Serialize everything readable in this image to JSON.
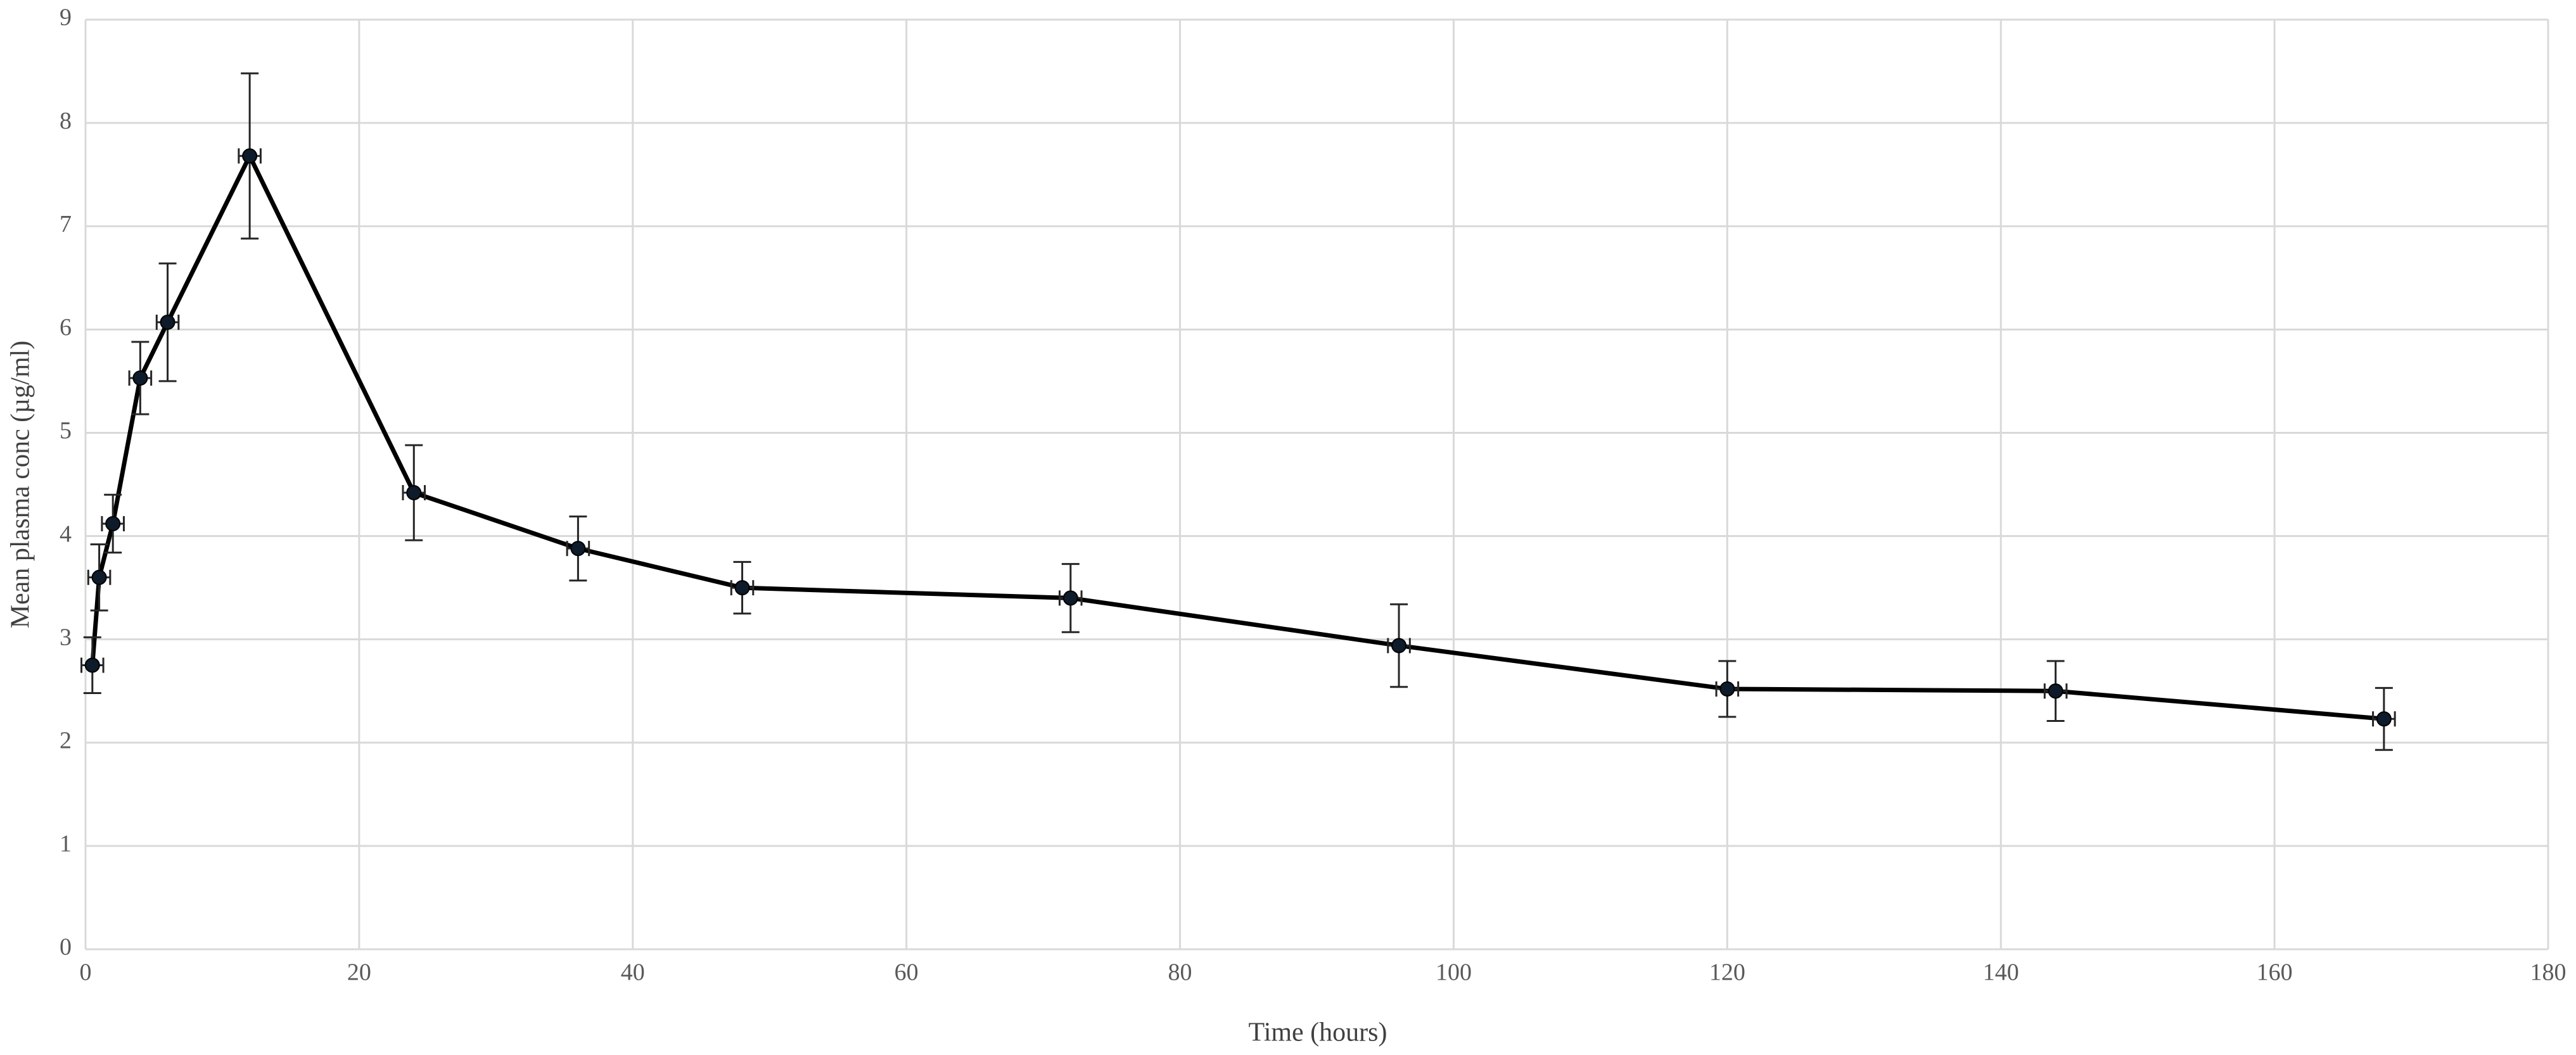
{
  "chart_data": {
    "type": "line",
    "xlabel": "Time  (hours)",
    "ylabel": "Mean plasma conc (µg/ml)",
    "x": [
      0.5,
      1,
      2,
      4,
      6,
      12,
      24,
      36,
      48,
      72,
      96,
      120,
      144,
      168
    ],
    "series": [
      {
        "color": "#000000",
        "values": [
          2.75,
          3.6,
          4.12,
          5.53,
          6.07,
          7.68,
          4.42,
          3.88,
          3.5,
          3.4,
          2.94,
          2.52,
          2.5,
          2.23
        ],
        "errors": [
          0.27,
          0.32,
          0.28,
          0.35,
          0.57,
          0.8,
          0.46,
          0.31,
          0.25,
          0.33,
          0.4,
          0.27,
          0.29,
          0.3
        ],
        "xerrors": [
          0.8,
          0.8,
          0.8,
          0.8,
          0.8,
          0.8,
          0.8,
          0.8,
          0.8,
          0.8,
          0.8,
          0.8,
          0.8,
          0.8
        ]
      }
    ],
    "xlim": [
      0,
      180
    ],
    "xticks": [
      0,
      20,
      40,
      60,
      80,
      100,
      120,
      140,
      160,
      180
    ],
    "ylim": [
      0,
      9
    ],
    "yticks": [
      0,
      1,
      2,
      3,
      4,
      5,
      6,
      7,
      8,
      9
    ],
    "grid": true
  }
}
